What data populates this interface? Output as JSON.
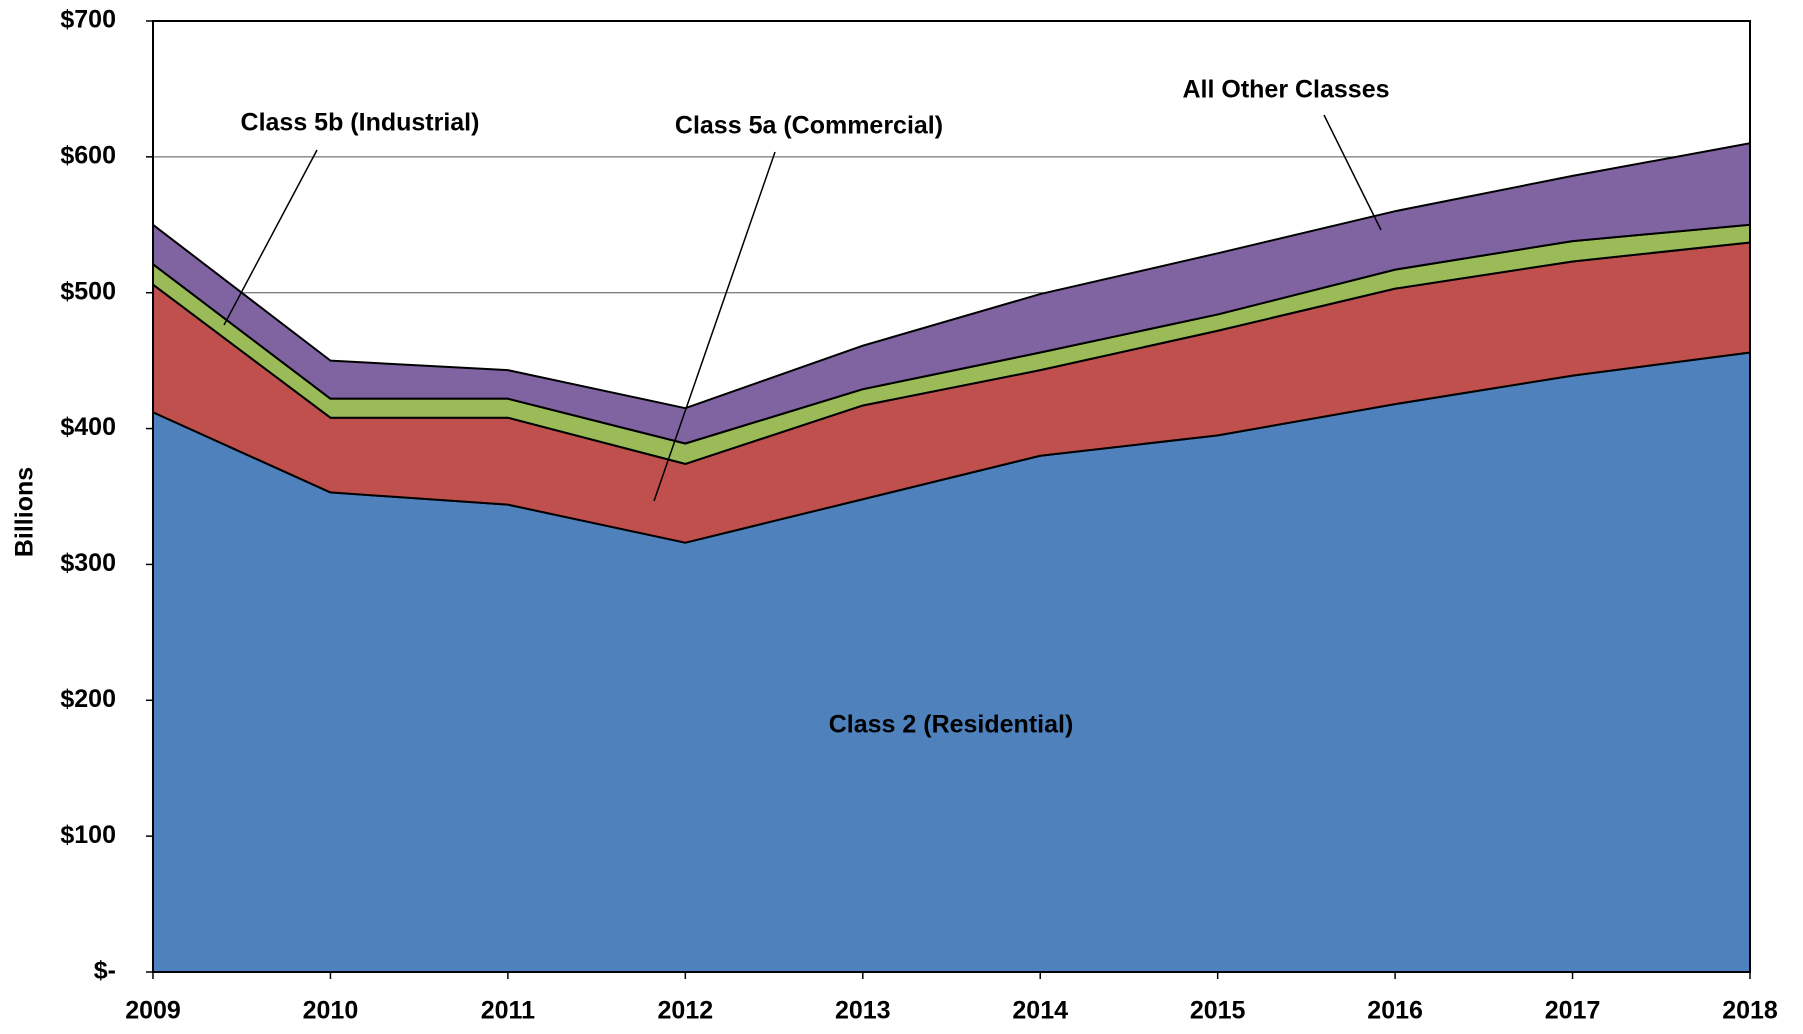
{
  "chart_data": {
    "type": "stacked_area",
    "y_label": "Billions",
    "categories": [
      "2009",
      "2010",
      "2011",
      "2012",
      "2013",
      "2014",
      "2015",
      "2016",
      "2017",
      "2018"
    ],
    "series": [
      {
        "name": "Class 2 (Residential)",
        "color": "#4f81bd",
        "values": [
          412,
          353,
          344,
          316,
          348,
          380,
          395,
          418,
          439,
          456
        ]
      },
      {
        "name": "Class 5a (Commercial)",
        "color": "#c0504d",
        "values": [
          94,
          55,
          64,
          58,
          69,
          63,
          77,
          85,
          84,
          81
        ]
      },
      {
        "name": "Class 5b (Industrial)",
        "color": "#9bbb59",
        "values": [
          15,
          14,
          14,
          15,
          12,
          13,
          12,
          14,
          15,
          13
        ]
      },
      {
        "name": "All Other Classes",
        "color": "#8064a2",
        "values": [
          29,
          28,
          21,
          26,
          32,
          43,
          45,
          43,
          48,
          60
        ]
      }
    ],
    "ylim": [
      0,
      700
    ],
    "yticks": [
      {
        "value": 0,
        "label": "$-"
      },
      {
        "value": 100,
        "label": "$100"
      },
      {
        "value": 200,
        "label": "$200"
      },
      {
        "value": 300,
        "label": "$300"
      },
      {
        "value": 400,
        "label": "$400"
      },
      {
        "value": 500,
        "label": "$500"
      },
      {
        "value": 600,
        "label": "$600"
      },
      {
        "value": 700,
        "label": "$700"
      }
    ],
    "grid": true
  }
}
